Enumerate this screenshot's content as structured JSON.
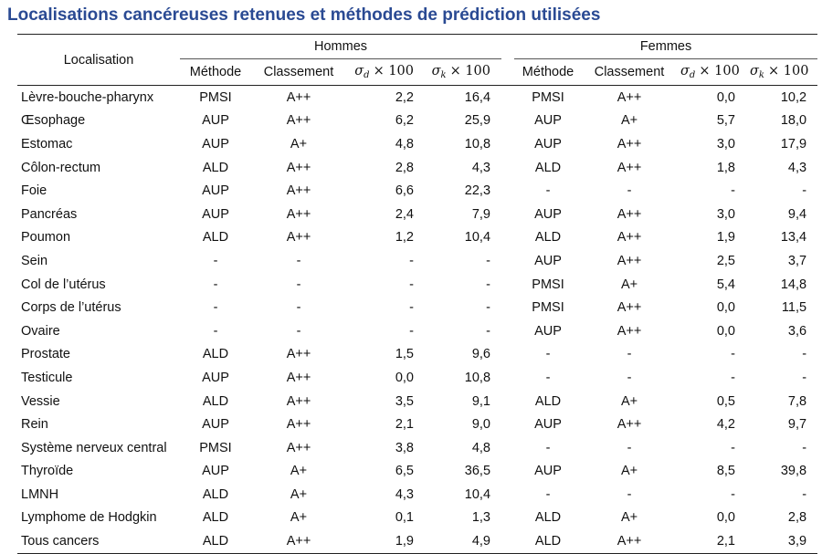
{
  "title": "Localisations cancéreuses retenues et méthodes de prédiction utilisées",
  "header": {
    "localisation": "Localisation",
    "hommes": "Hommes",
    "femmes": "Femmes",
    "methode": "Méthode",
    "classement": "Classement",
    "sigma_d": {
      "symbol": "σ",
      "sub": "d",
      "times": "× 100"
    },
    "sigma_k": {
      "symbol": "σ",
      "sub": "k",
      "times": "× 100"
    }
  },
  "rows": [
    {
      "loc": "Lèvre-bouche-pharynx",
      "h": [
        "PMSI",
        "A++",
        "2,2",
        "16,4"
      ],
      "f": [
        "PMSI",
        "A++",
        "0,0",
        "10,2"
      ]
    },
    {
      "loc": "Œsophage",
      "h": [
        "AUP",
        "A++",
        "6,2",
        "25,9"
      ],
      "f": [
        "AUP",
        "A+",
        "5,7",
        "18,0"
      ]
    },
    {
      "loc": "Estomac",
      "h": [
        "AUP",
        "A+",
        "4,8",
        "10,8"
      ],
      "f": [
        "AUP",
        "A++",
        "3,0",
        "17,9"
      ]
    },
    {
      "loc": "Côlon-rectum",
      "h": [
        "ALD",
        "A++",
        "2,8",
        "4,3"
      ],
      "f": [
        "ALD",
        "A++",
        "1,8",
        "4,3"
      ]
    },
    {
      "loc": "Foie",
      "h": [
        "AUP",
        "A++",
        "6,6",
        "22,3"
      ],
      "f": [
        "-",
        "-",
        "-",
        "-"
      ]
    },
    {
      "loc": "Pancréas",
      "h": [
        "AUP",
        "A++",
        "2,4",
        "7,9"
      ],
      "f": [
        "AUP",
        "A++",
        "3,0",
        "9,4"
      ]
    },
    {
      "loc": "Poumon",
      "h": [
        "ALD",
        "A++",
        "1,2",
        "10,4"
      ],
      "f": [
        "ALD",
        "A++",
        "1,9",
        "13,4"
      ]
    },
    {
      "loc": "Sein",
      "h": [
        "-",
        "-",
        "-",
        "-"
      ],
      "f": [
        "AUP",
        "A++",
        "2,5",
        "3,7"
      ]
    },
    {
      "loc": "Col de l’utérus",
      "h": [
        "-",
        "-",
        "-",
        "-"
      ],
      "f": [
        "PMSI",
        "A+",
        "5,4",
        "14,8"
      ]
    },
    {
      "loc": "Corps de l’utérus",
      "h": [
        "-",
        "-",
        "-",
        "-"
      ],
      "f": [
        "PMSI",
        "A++",
        "0,0",
        "11,5"
      ]
    },
    {
      "loc": "Ovaire",
      "h": [
        "-",
        "-",
        "-",
        "-"
      ],
      "f": [
        "AUP",
        "A++",
        "0,0",
        "3,6"
      ]
    },
    {
      "loc": "Prostate",
      "h": [
        "ALD",
        "A++",
        "1,5",
        "9,6"
      ],
      "f": [
        "-",
        "-",
        "-",
        "-"
      ]
    },
    {
      "loc": "Testicule",
      "h": [
        "AUP",
        "A++",
        "0,0",
        "10,8"
      ],
      "f": [
        "-",
        "-",
        "-",
        "-"
      ]
    },
    {
      "loc": "Vessie",
      "h": [
        "ALD",
        "A++",
        "3,5",
        "9,1"
      ],
      "f": [
        "ALD",
        "A+",
        "0,5",
        "7,8"
      ]
    },
    {
      "loc": "Rein",
      "h": [
        "AUP",
        "A++",
        "2,1",
        "9,0"
      ],
      "f": [
        "AUP",
        "A++",
        "4,2",
        "9,7"
      ]
    },
    {
      "loc": "Système nerveux central",
      "h": [
        "PMSI",
        "A++",
        "3,8",
        "4,8"
      ],
      "f": [
        "-",
        "-",
        "-",
        "-"
      ]
    },
    {
      "loc": "Thyroïde",
      "h": [
        "AUP",
        "A+",
        "6,5",
        "36,5"
      ],
      "f": [
        "AUP",
        "A+",
        "8,5",
        "39,8"
      ]
    },
    {
      "loc": "LMNH",
      "h": [
        "ALD",
        "A+",
        "4,3",
        "10,4"
      ],
      "f": [
        "-",
        "-",
        "-",
        "-"
      ]
    },
    {
      "loc": "Lymphome de Hodgkin",
      "h": [
        "ALD",
        "A+",
        "0,1",
        "1,3"
      ],
      "f": [
        "ALD",
        "A+",
        "0,0",
        "2,8"
      ]
    },
    {
      "loc": "Tous cancers",
      "h": [
        "ALD",
        "A++",
        "1,9",
        "4,9"
      ],
      "f": [
        "ALD",
        "A++",
        "2,1",
        "3,9"
      ]
    }
  ]
}
